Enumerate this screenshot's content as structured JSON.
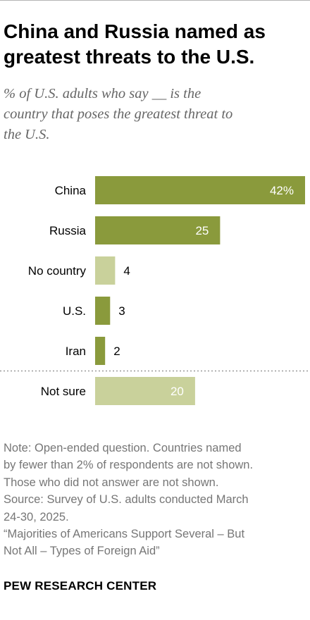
{
  "title_lines": [
    "China and Russia named as",
    "greatest threats to the U.S."
  ],
  "subtitle_lines": [
    "% of U.S. adults who say __ is the",
    "country that poses the greatest threat to",
    "the U.S."
  ],
  "chart_data": {
    "type": "bar",
    "orientation": "horizontal",
    "categories": [
      "China",
      "Russia",
      "No country",
      "U.S.",
      "Iran",
      "Not sure"
    ],
    "values": [
      42,
      25,
      4,
      3,
      2,
      20
    ],
    "value_labels": [
      "42%",
      "25",
      "4",
      "3",
      "2",
      "20"
    ],
    "xlim": [
      0,
      42
    ],
    "colors": {
      "country": "#8a9a3c",
      "no_country": "#c9d19b",
      "not_sure": "#c9d19b",
      "label_inside": "#ffffff",
      "label_outside": "#000000"
    },
    "separator_before": "Not sure"
  },
  "note_lines": [
    "Note: Open-ended question. Countries named",
    "by fewer than 2% of respondents are not shown.",
    "Those who did not answer are not shown.",
    "Source: Survey of U.S. adults conducted March",
    "24-30, 2025.",
    "“Majorities of Americans Support Several – But",
    "Not All – Types of Foreign Aid”"
  ],
  "brand": "PEW RESEARCH CENTER"
}
